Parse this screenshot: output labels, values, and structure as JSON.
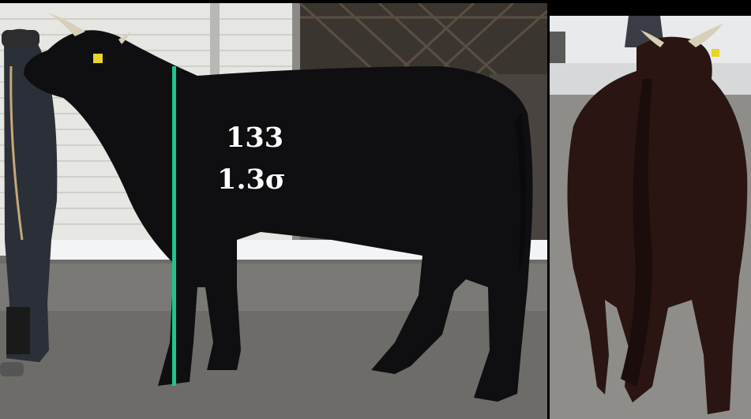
{
  "measurement": {
    "value": "133",
    "sigma": "1.3σ",
    "line_color": "#1fc48a"
  },
  "photos": {
    "side_view": "cattle-side-view",
    "rear_view": "cattle-rear-view"
  }
}
